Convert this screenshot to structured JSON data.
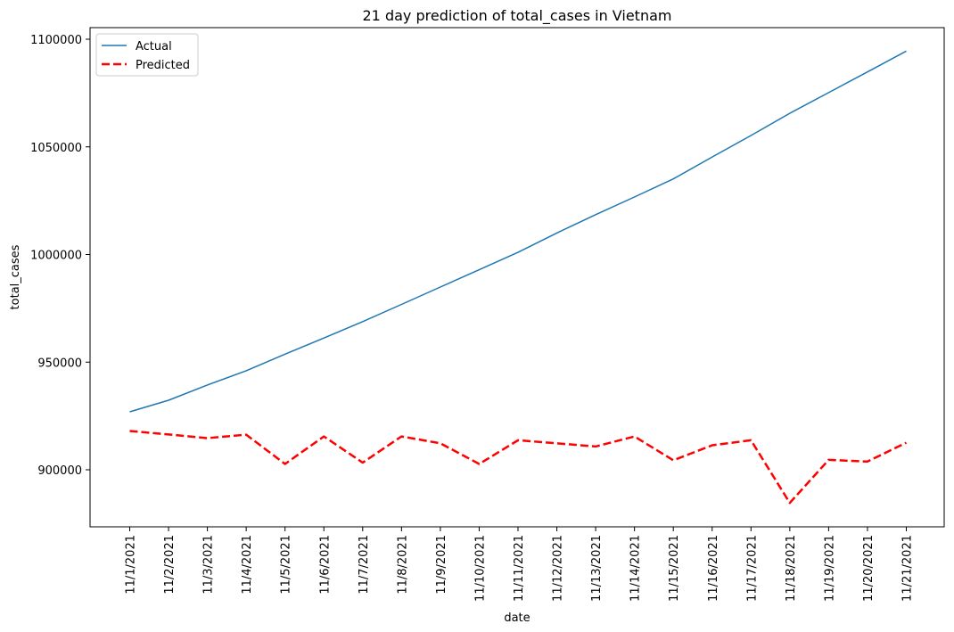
{
  "chart_data": {
    "type": "line",
    "title": "21 day prediction of total_cases in Vietnam",
    "xlabel": "date",
    "ylabel": "total_cases",
    "ylim": [
      873500,
      1100000
    ],
    "yticks": [
      900000,
      950000,
      1000000,
      1050000,
      1100000
    ],
    "yticklabels": [
      "900000",
      "950000",
      "1000000",
      "1050000",
      "1100000"
    ],
    "categories": [
      "11/1/2021",
      "11/2/2021",
      "11/3/2021",
      "11/4/2021",
      "11/5/2021",
      "11/6/2021",
      "11/7/2021",
      "11/8/2021",
      "11/9/2021",
      "11/10/2021",
      "11/11/2021",
      "11/12/2021",
      "11/13/2021",
      "11/14/2021",
      "11/15/2021",
      "11/16/2021",
      "11/17/2021",
      "11/18/2021",
      "11/19/2021",
      "11/20/2021",
      "11/21/2021"
    ],
    "legend_position": "top-left",
    "series": [
      {
        "name": "Actual",
        "color": "#1f77b4",
        "style": "solid",
        "values": [
          926900,
          932300,
          939400,
          946000,
          953700,
          961200,
          968800,
          976800,
          984900,
          992900,
          1001000,
          1010000,
          1018500,
          1026700,
          1035100,
          1045300,
          1055300,
          1065600,
          1075200,
          1084800,
          1094500
        ]
      },
      {
        "name": "Predicted",
        "color": "#ff0000",
        "style": "dashed",
        "values": [
          918000,
          916400,
          914700,
          916300,
          902700,
          915500,
          903300,
          915500,
          912300,
          902700,
          913700,
          912300,
          910800,
          915500,
          904400,
          911400,
          913700,
          884600,
          904600,
          903800,
          912600
        ]
      }
    ]
  }
}
